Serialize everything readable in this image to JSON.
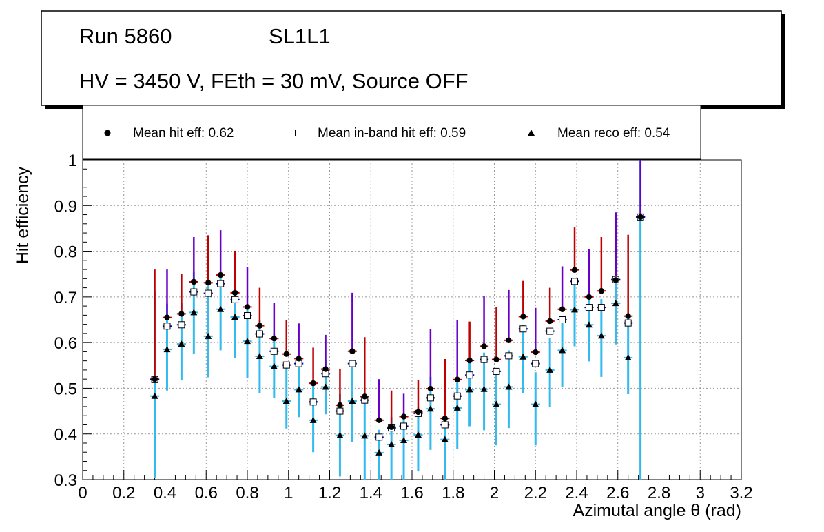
{
  "info_box": {
    "run": "Run 5860",
    "layer": "SL1L1",
    "conditions": "HV = 3450 V, FEth = 30 mV, Source OFF"
  },
  "legend": {
    "hit": "Mean hit  eff: 0.62",
    "inband": "Mean in-band hit eff: 0.59",
    "reco": "Mean reco eff: 0.54"
  },
  "colors": {
    "hit_err": "#c00000",
    "hit_err2": "#6a00c8",
    "inband_err": "#0000b0",
    "reco_err": "#33bbee",
    "marker": "#000000"
  },
  "chart_data": {
    "type": "scatter",
    "title": "",
    "xlabel": "Azimutal angle θ (rad)",
    "ylabel": "Hit efficiency",
    "xlim": [
      0,
      3.2
    ],
    "ylim": [
      0.3,
      1.0
    ],
    "xticks": [
      "0",
      "0.2",
      "0.4",
      "0.6",
      "0.8",
      "1",
      "1.2",
      "1.4",
      "1.6",
      "1.8",
      "2",
      "2.2",
      "2.4",
      "2.6",
      "2.8",
      "3",
      "3.2"
    ],
    "yticks": [
      "0.3",
      "0.4",
      "0.5",
      "0.6",
      "0.7",
      "0.8",
      "0.9",
      "1"
    ],
    "grid": true,
    "x": [
      0.35,
      0.41,
      0.48,
      0.54,
      0.61,
      0.67,
      0.74,
      0.8,
      0.86,
      0.93,
      0.99,
      1.05,
      1.12,
      1.18,
      1.25,
      1.31,
      1.37,
      1.44,
      1.5,
      1.56,
      1.63,
      1.69,
      1.76,
      1.82,
      1.88,
      1.95,
      2.01,
      2.07,
      2.14,
      2.2,
      2.27,
      2.33,
      2.39,
      2.46,
      2.52,
      2.59,
      2.65,
      2.71
    ],
    "x_half_width": 0.022,
    "series": [
      {
        "name": "Mean hit  eff: 0.62",
        "marker": "circle",
        "values": [
          0.52,
          0.655,
          0.663,
          0.733,
          0.731,
          0.748,
          0.709,
          0.678,
          0.637,
          0.609,
          0.575,
          0.565,
          0.511,
          0.542,
          0.463,
          0.581,
          0.482,
          0.43,
          0.415,
          0.438,
          0.448,
          0.499,
          0.434,
          0.519,
          0.561,
          0.592,
          0.563,
          0.605,
          0.657,
          0.579,
          0.647,
          0.673,
          0.759,
          0.7,
          0.713,
          0.737,
          0.658,
          0.875
        ],
        "err_up": [
          0.24,
          0.105,
          0.088,
          0.098,
          0.104,
          0.098,
          0.092,
          0.088,
          0.083,
          0.078,
          0.075,
          0.077,
          0.078,
          0.075,
          0.08,
          0.128,
          0.13,
          0.09,
          0.08,
          0.05,
          0.07,
          0.13,
          0.13,
          0.13,
          0.085,
          0.11,
          0.115,
          0.11,
          0.078,
          0.097,
          0.073,
          0.094,
          0.093,
          0.105,
          0.118,
          0.148,
          0.178,
          0.125
        ],
        "err_down": [
          0.04,
          0.03,
          0.03,
          0.03,
          0.03,
          0.03,
          0.03,
          0.03,
          0.03,
          0.03,
          0.03,
          0.03,
          0.03,
          0.03,
          0.03,
          0.03,
          0.03,
          0.03,
          0.03,
          0.03,
          0.03,
          0.03,
          0.03,
          0.03,
          0.03,
          0.03,
          0.03,
          0.03,
          0.03,
          0.03,
          0.03,
          0.03,
          0.03,
          0.03,
          0.03,
          0.03,
          0.03,
          0.03
        ]
      },
      {
        "name": "Mean in-band hit eff: 0.59",
        "marker": "open-square",
        "values": [
          0.519,
          0.636,
          0.639,
          0.711,
          0.708,
          0.729,
          0.694,
          0.659,
          0.619,
          0.581,
          0.551,
          0.554,
          0.47,
          0.532,
          0.45,
          0.554,
          0.474,
          0.393,
          0.413,
          0.417,
          0.445,
          0.479,
          0.42,
          0.483,
          0.529,
          0.563,
          0.537,
          0.571,
          0.63,
          0.554,
          0.625,
          0.65,
          0.734,
          0.677,
          0.677,
          0.738,
          0.643,
          0.875
        ],
        "err_up": [
          0.04,
          0.04,
          0.04,
          0.04,
          0.04,
          0.04,
          0.04,
          0.04,
          0.04,
          0.04,
          0.04,
          0.04,
          0.04,
          0.04,
          0.04,
          0.04,
          0.04,
          0.04,
          0.04,
          0.04,
          0.04,
          0.04,
          0.04,
          0.04,
          0.04,
          0.04,
          0.04,
          0.04,
          0.04,
          0.04,
          0.04,
          0.04,
          0.04,
          0.04,
          0.04,
          0.04,
          0.04,
          0.04
        ],
        "err_down": [
          0.04,
          0.04,
          0.04,
          0.04,
          0.04,
          0.04,
          0.04,
          0.04,
          0.04,
          0.04,
          0.04,
          0.04,
          0.04,
          0.04,
          0.04,
          0.04,
          0.04,
          0.04,
          0.04,
          0.04,
          0.04,
          0.04,
          0.04,
          0.04,
          0.04,
          0.04,
          0.04,
          0.04,
          0.04,
          0.04,
          0.04,
          0.04,
          0.04,
          0.04,
          0.04,
          0.04,
          0.04,
          0.04
        ]
      },
      {
        "name": "Mean reco eff: 0.54",
        "marker": "triangle",
        "values": [
          0.483,
          0.585,
          0.597,
          0.666,
          0.614,
          0.673,
          0.656,
          0.603,
          0.57,
          0.548,
          0.472,
          0.497,
          0.43,
          0.503,
          0.397,
          0.472,
          0.396,
          0.359,
          0.377,
          0.386,
          0.398,
          0.455,
          0.388,
          0.457,
          0.497,
          0.498,
          0.465,
          0.503,
          0.569,
          0.465,
          0.54,
          0.583,
          0.672,
          0.639,
          0.615,
          0.686,
          0.567,
          0.875
        ],
        "err_up": [
          0.23,
          0.1,
          0.09,
          0.09,
          0.11,
          0.08,
          0.1,
          0.08,
          0.08,
          0.07,
          0.08,
          0.07,
          0.08,
          0.06,
          0.09,
          0.09,
          0.09,
          0.05,
          0.06,
          0.05,
          0.06,
          0.07,
          0.08,
          0.07,
          0.06,
          0.08,
          0.07,
          0.08,
          0.07,
          0.07,
          0.07,
          0.06,
          0.06,
          0.06,
          0.08,
          0.06,
          0.09,
          0.13
        ],
        "err_down": [
          0.18,
          0.09,
          0.08,
          0.09,
          0.09,
          0.09,
          0.09,
          0.08,
          0.08,
          0.07,
          0.06,
          0.06,
          0.07,
          0.06,
          0.09,
          0.09,
          0.1,
          0.06,
          0.08,
          0.09,
          0.08,
          0.09,
          0.09,
          0.09,
          0.08,
          0.09,
          0.09,
          0.09,
          0.08,
          0.09,
          0.08,
          0.08,
          0.08,
          0.08,
          0.09,
          0.09,
          0.08,
          0.58
        ]
      }
    ]
  }
}
